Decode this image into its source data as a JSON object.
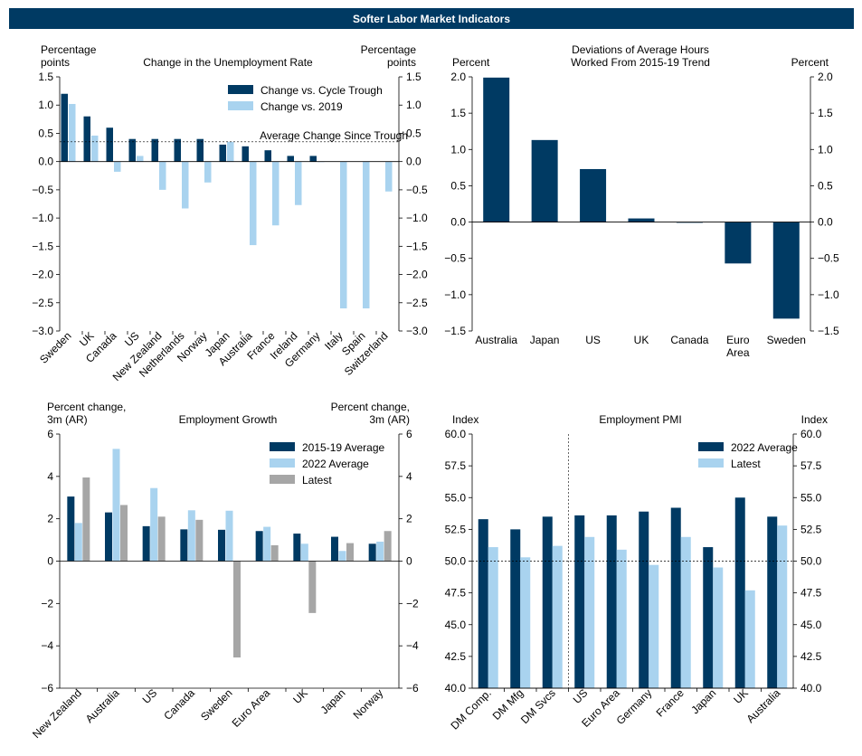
{
  "page_title": "Softer Labor Market Indicators",
  "colors": {
    "navy": "#003a63",
    "light_blue": "#a9d3ef",
    "gray": "#a6a6a6",
    "banner": "#003a63"
  },
  "chart_data": [
    {
      "id": "unemp",
      "type": "bar",
      "title": "Change in the Unemployment Rate",
      "ylabel_left": [
        "Percentage",
        "points"
      ],
      "ylabel_right": [
        "Percentage",
        "points"
      ],
      "ylim": [
        -3.0,
        1.5
      ],
      "yticks": [
        1.5,
        1.0,
        0.5,
        0.0,
        -0.5,
        -1.0,
        -1.5,
        -2.0,
        -2.5,
        -3.0
      ],
      "tick_decimals": 1,
      "categories": [
        "Sweden",
        "UK",
        "Canada",
        "US",
        "New Zealand",
        "Netherlands",
        "Norway",
        "Japan",
        "Australia",
        "France",
        "Ireland",
        "Germany",
        "Italy",
        "Spain",
        "Switzerland"
      ],
      "series": [
        {
          "name": "Change vs. Cycle Trough",
          "color": "#003a63",
          "values": [
            1.2,
            0.8,
            0.6,
            0.4,
            0.4,
            0.4,
            0.4,
            0.3,
            0.27,
            0.2,
            0.1,
            0.1,
            null,
            null,
            null
          ]
        },
        {
          "name": "Change vs. 2019",
          "color": "#a9d3ef",
          "values": [
            1.02,
            0.46,
            -0.18,
            0.1,
            -0.5,
            -0.83,
            -0.37,
            0.35,
            -1.48,
            -1.13,
            -0.77,
            0.0,
            -2.6,
            -2.6,
            -0.53
          ]
        }
      ],
      "reference_line": {
        "value": 0.35,
        "label": "Average Change Since Trough"
      }
    },
    {
      "id": "hours",
      "type": "bar",
      "title": [
        "Deviations of Average Hours",
        "Worked From 2015-19 Trend"
      ],
      "ylabel_left": [
        "Percent"
      ],
      "ylabel_right": [
        "Percent"
      ],
      "ylim": [
        -1.5,
        2.0
      ],
      "yticks": [
        2.0,
        1.5,
        1.0,
        0.5,
        0.0,
        -0.5,
        -1.0,
        -1.5
      ],
      "tick_decimals": 1,
      "categories": [
        "Australia",
        "Japan",
        "US",
        "UK",
        "Canada",
        "Euro Area",
        "Sweden"
      ],
      "series": [
        {
          "name": "Deviation",
          "color": "#003a63",
          "values": [
            1.99,
            1.13,
            0.73,
            0.05,
            -0.01,
            -0.57,
            -1.33
          ]
        }
      ]
    },
    {
      "id": "employment",
      "type": "bar",
      "title": "Employment Growth",
      "ylabel_left": [
        "Percent change,",
        "3m (AR)"
      ],
      "ylabel_right": [
        "Percent change,",
        "3m (AR)"
      ],
      "ylim": [
        -6,
        6
      ],
      "yticks": [
        6,
        4,
        2,
        0,
        -2,
        -4,
        -6
      ],
      "tick_decimals": 0,
      "categories": [
        "New Zealand",
        "Australia",
        "US",
        "Canada",
        "Sweden",
        "Euro Area",
        "UK",
        "Japan",
        "Norway"
      ],
      "series": [
        {
          "name": "2015-19 Average",
          "color": "#003a63",
          "values": [
            3.05,
            2.3,
            1.65,
            1.5,
            1.48,
            1.42,
            1.3,
            1.15,
            0.82
          ]
        },
        {
          "name": "2022 Average",
          "color": "#a9d3ef",
          "values": [
            1.8,
            5.3,
            3.45,
            2.4,
            2.38,
            1.62,
            0.82,
            0.48,
            0.92
          ]
        },
        {
          "name": "Latest",
          "color": "#a6a6a6",
          "values": [
            3.95,
            2.65,
            2.1,
            1.95,
            -4.55,
            0.75,
            -2.45,
            0.85,
            1.42
          ]
        }
      ]
    },
    {
      "id": "pmi",
      "type": "bar",
      "title": "Employment PMI",
      "ylabel_left": [
        "Index"
      ],
      "ylabel_right": [
        "Index"
      ],
      "ylim": [
        40.0,
        60.0
      ],
      "yticks": [
        60.0,
        57.5,
        55.0,
        52.5,
        50.0,
        47.5,
        45.0,
        42.5,
        40.0
      ],
      "tick_decimals": 1,
      "categories": [
        "DM Comp.",
        "DM Mfg",
        "DM Svcs",
        "US",
        "Euro Area",
        "Germany",
        "France",
        "Japan",
        "UK",
        "Australia"
      ],
      "series": [
        {
          "name": "2022 Average",
          "color": "#003a63",
          "values": [
            53.3,
            52.5,
            53.5,
            53.6,
            53.6,
            53.9,
            54.2,
            51.1,
            55.0,
            53.5
          ]
        },
        {
          "name": "Latest",
          "color": "#a9d3ef",
          "values": [
            51.1,
            50.3,
            51.2,
            51.9,
            50.9,
            49.7,
            51.9,
            49.5,
            47.7,
            52.8
          ]
        }
      ],
      "reference_line": {
        "value": 50.0,
        "label": ""
      },
      "separator_after_index": 2
    }
  ]
}
